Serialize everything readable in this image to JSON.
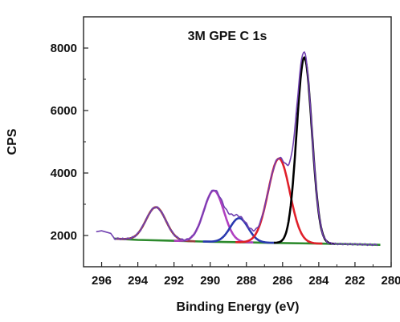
{
  "chart_data": {
    "type": "line",
    "title": "3M GPE C 1s",
    "xlabel": "Binding Energy (eV)",
    "ylabel": "CPS",
    "xlim": [
      297,
      280
    ],
    "ylim": [
      1000,
      9000
    ],
    "x_reversed": true,
    "x_ticks": [
      "296",
      "294",
      "292",
      "290",
      "288",
      "286",
      "284",
      "282",
      "280"
    ],
    "y_ticks": [
      "2000",
      "4000",
      "6000",
      "8000"
    ],
    "grid": false,
    "legend": "none",
    "peaks": [
      {
        "center": 293.0,
        "amplitude": 1060,
        "sigma": 0.55,
        "color": "#9a4040"
      },
      {
        "center": 289.8,
        "amplitude": 1640,
        "sigma": 0.55,
        "color": "#b040c0"
      },
      {
        "center": 288.4,
        "amplitude": 770,
        "sigma": 0.5,
        "color": "#2a3ab0"
      },
      {
        "center": 286.2,
        "amplitude": 2700,
        "sigma": 0.6,
        "color": "#e0202a"
      },
      {
        "center": 284.8,
        "amplitude": 5950,
        "sigma": 0.42,
        "color": "#000000"
      }
    ],
    "series": [
      {
        "color": "#2d8a2d",
        "x": [
          295.3,
          294,
          292,
          290,
          288,
          286,
          284,
          282,
          280.6
        ],
        "y": [
          1900,
          1860,
          1830,
          1800,
          1780,
          1760,
          1740,
          1720,
          1700
        ]
      },
      {
        "color": "#7040b0",
        "x": [
          296.3,
          296,
          295.5,
          295.3
        ],
        "y": [
          2120,
          2150,
          2070,
          1910
        ]
      }
    ]
  }
}
